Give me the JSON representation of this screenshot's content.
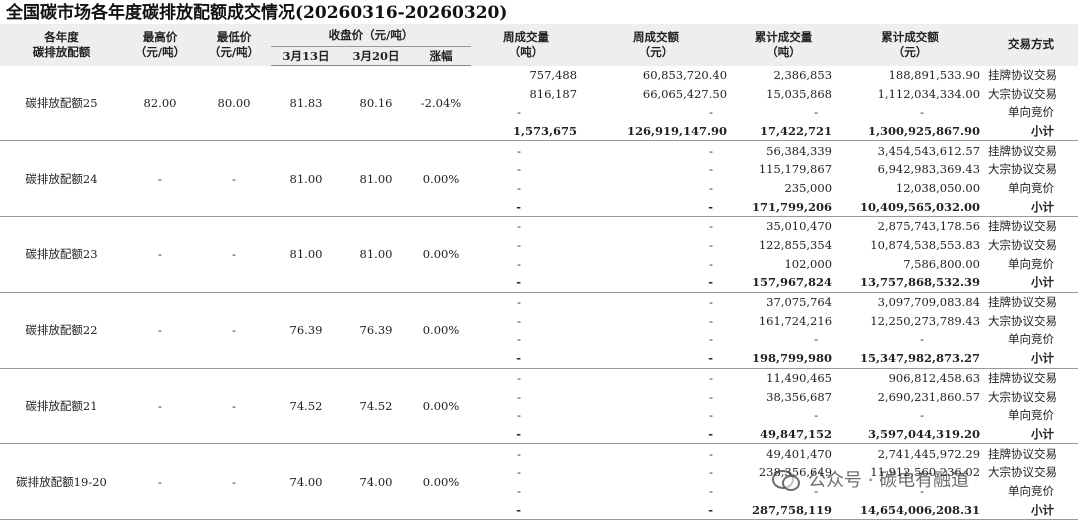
{
  "title": "全国碳市场各年度碳排放配额成交情况(20260316-20260320)",
  "header": {
    "year_line1": "各年度",
    "year_line2": "碳排放配额",
    "high_line1": "最高价",
    "high_line2": "（元/吨）",
    "low_line1": "最低价",
    "low_line2": "（元/吨）",
    "close": "收盘价（元/吨）",
    "date1": "3月13日",
    "date2": "3月20日",
    "change": "涨幅",
    "week_vol_line1": "周成交量",
    "week_vol_line2": "（吨）",
    "week_amt_line1": "周成交额",
    "week_amt_line2": "（元）",
    "cum_vol_line1": "累计成交量",
    "cum_vol_line2": "（吨）",
    "cum_amt_line1": "累计成交额",
    "cum_amt_line2": "（元）",
    "mode": "交易方式"
  },
  "groups": [
    {
      "name": "碳排放配额25",
      "high": "82.00",
      "low": "80.00",
      "d1": "81.83",
      "d2": "80.16",
      "change": "-2.04%",
      "rows": [
        {
          "week_vol": "757,488",
          "week_amt": "60,853,720.40",
          "cum_vol": "2,386,853",
          "cum_amt": "188,891,533.90",
          "mode": "挂牌协议交易"
        },
        {
          "week_vol": "816,187",
          "week_amt": "66,065,427.50",
          "cum_vol": "15,035,868",
          "cum_amt": "1,112,034,334.00",
          "mode": "大宗协议交易"
        },
        {
          "week_vol": "-",
          "week_amt": "-",
          "cum_vol": "-",
          "cum_amt": "-",
          "mode": "单向竞价"
        },
        {
          "week_vol": "1,573,675",
          "week_amt": "126,919,147.90",
          "cum_vol": "17,422,721",
          "cum_amt": "1,300,925,867.90",
          "mode": "小计"
        }
      ]
    },
    {
      "name": "碳排放配额24",
      "high": "-",
      "low": "-",
      "d1": "81.00",
      "d2": "81.00",
      "change": "0.00%",
      "rows": [
        {
          "week_vol": "-",
          "week_amt": "-",
          "cum_vol": "56,384,339",
          "cum_amt": "3,454,543,612.57",
          "mode": "挂牌协议交易"
        },
        {
          "week_vol": "-",
          "week_amt": "-",
          "cum_vol": "115,179,867",
          "cum_amt": "6,942,983,369.43",
          "mode": "大宗协议交易"
        },
        {
          "week_vol": "-",
          "week_amt": "-",
          "cum_vol": "235,000",
          "cum_amt": "12,038,050.00",
          "mode": "单向竞价"
        },
        {
          "week_vol": "-",
          "week_amt": "-",
          "cum_vol": "171,799,206",
          "cum_amt": "10,409,565,032.00",
          "mode": "小计"
        }
      ]
    },
    {
      "name": "碳排放配额23",
      "high": "-",
      "low": "-",
      "d1": "81.00",
      "d2": "81.00",
      "change": "0.00%",
      "rows": [
        {
          "week_vol": "-",
          "week_amt": "-",
          "cum_vol": "35,010,470",
          "cum_amt": "2,875,743,178.56",
          "mode": "挂牌协议交易"
        },
        {
          "week_vol": "-",
          "week_amt": "-",
          "cum_vol": "122,855,354",
          "cum_amt": "10,874,538,553.83",
          "mode": "大宗协议交易"
        },
        {
          "week_vol": "-",
          "week_amt": "-",
          "cum_vol": "102,000",
          "cum_amt": "7,586,800.00",
          "mode": "单向竞价"
        },
        {
          "week_vol": "-",
          "week_amt": "-",
          "cum_vol": "157,967,824",
          "cum_amt": "13,757,868,532.39",
          "mode": "小计"
        }
      ]
    },
    {
      "name": "碳排放配额22",
      "high": "-",
      "low": "-",
      "d1": "76.39",
      "d2": "76.39",
      "change": "0.00%",
      "rows": [
        {
          "week_vol": "-",
          "week_amt": "-",
          "cum_vol": "37,075,764",
          "cum_amt": "3,097,709,083.84",
          "mode": "挂牌协议交易"
        },
        {
          "week_vol": "-",
          "week_amt": "-",
          "cum_vol": "161,724,216",
          "cum_amt": "12,250,273,789.43",
          "mode": "大宗协议交易"
        },
        {
          "week_vol": "-",
          "week_amt": "-",
          "cum_vol": "-",
          "cum_amt": "-",
          "mode": "单向竞价"
        },
        {
          "week_vol": "-",
          "week_amt": "-",
          "cum_vol": "198,799,980",
          "cum_amt": "15,347,982,873.27",
          "mode": "小计"
        }
      ]
    },
    {
      "name": "碳排放配额21",
      "high": "-",
      "low": "-",
      "d1": "74.52",
      "d2": "74.52",
      "change": "0.00%",
      "rows": [
        {
          "week_vol": "-",
          "week_amt": "-",
          "cum_vol": "11,490,465",
          "cum_amt": "906,812,458.63",
          "mode": "挂牌协议交易"
        },
        {
          "week_vol": "-",
          "week_amt": "-",
          "cum_vol": "38,356,687",
          "cum_amt": "2,690,231,860.57",
          "mode": "大宗协议交易"
        },
        {
          "week_vol": "-",
          "week_amt": "-",
          "cum_vol": "-",
          "cum_amt": "-",
          "mode": "单向竞价"
        },
        {
          "week_vol": "-",
          "week_amt": "-",
          "cum_vol": "49,847,152",
          "cum_amt": "3,597,044,319.20",
          "mode": "小计"
        }
      ]
    },
    {
      "name": "碳排放配额19-20",
      "high": "-",
      "low": "-",
      "d1": "74.00",
      "d2": "74.00",
      "change": "0.00%",
      "rows": [
        {
          "week_vol": "-",
          "week_amt": "-",
          "cum_vol": "49,401,470",
          "cum_amt": "2,741,445,972.29",
          "mode": "挂牌协议交易"
        },
        {
          "week_vol": "-",
          "week_amt": "-",
          "cum_vol": "238,356,649",
          "cum_amt": "11,912,560,236.02",
          "mode": "大宗协议交易"
        },
        {
          "week_vol": "-",
          "week_amt": "-",
          "cum_vol": "-",
          "cum_amt": "-",
          "mode": "单向竞价"
        },
        {
          "week_vol": "-",
          "week_amt": "-",
          "cum_vol": "287,758,119",
          "cum_amt": "14,654,006,208.31",
          "mode": "小计"
        }
      ]
    }
  ],
  "watermark": {
    "text": "公众号 · 碳电有融道",
    "icon": "wechat-icon"
  }
}
